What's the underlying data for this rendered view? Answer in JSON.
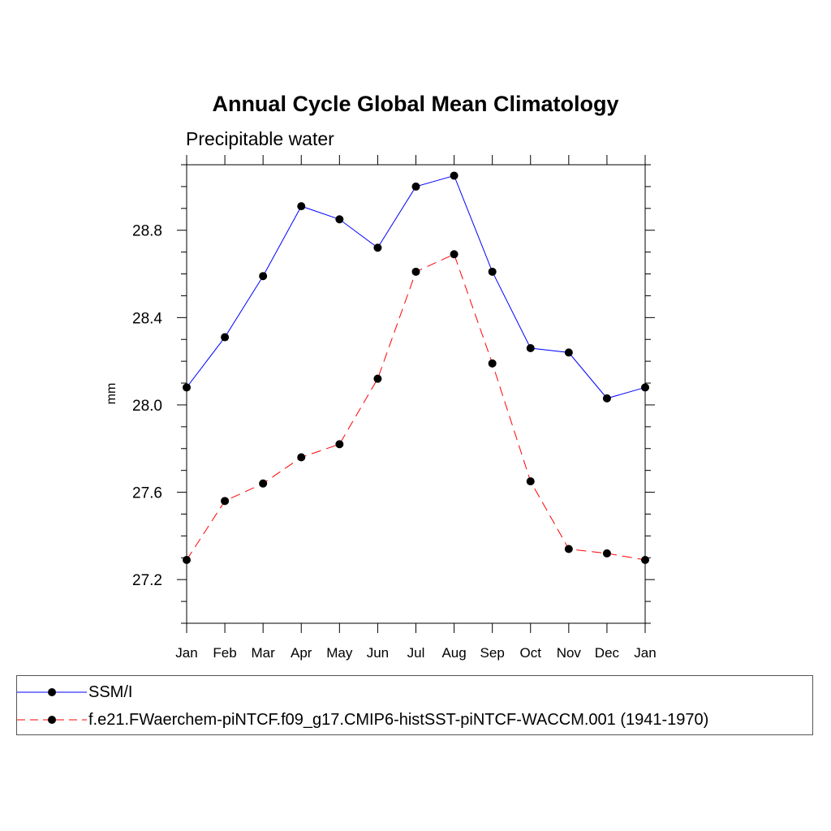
{
  "chart_data": {
    "type": "line",
    "title": "Annual Cycle Global Mean Climatology",
    "subtitle": "Precipitable water",
    "xlabel": "",
    "ylabel": "mm",
    "categories": [
      "Jan",
      "Feb",
      "Mar",
      "Apr",
      "May",
      "Jun",
      "Jul",
      "Aug",
      "Sep",
      "Oct",
      "Nov",
      "Dec",
      "Jan"
    ],
    "ylim": [
      27.0,
      29.1
    ],
    "yticks": [
      27.2,
      27.6,
      28.0,
      28.4,
      28.8
    ],
    "ytick_labels": [
      "27.2",
      "27.6",
      "28.0",
      "28.4",
      "28.8"
    ],
    "series": [
      {
        "name": "SSM/I",
        "color": "#0000ff",
        "dash": "solid",
        "values": [
          28.08,
          28.31,
          28.59,
          28.91,
          28.85,
          28.72,
          29.0,
          29.05,
          28.61,
          28.26,
          28.24,
          28.03,
          28.08
        ]
      },
      {
        "name": "f.e21.FWaerchem-piNTCF.f09_g17.CMIP6-histSST-piNTCF-WACCM.001 (1941-1970)",
        "color": "#ff0000",
        "dash": "dashed",
        "values": [
          27.29,
          27.56,
          27.64,
          27.76,
          27.82,
          28.12,
          28.61,
          28.69,
          28.19,
          27.65,
          27.34,
          27.32,
          27.29
        ]
      }
    ],
    "legend_position": "bottom"
  }
}
